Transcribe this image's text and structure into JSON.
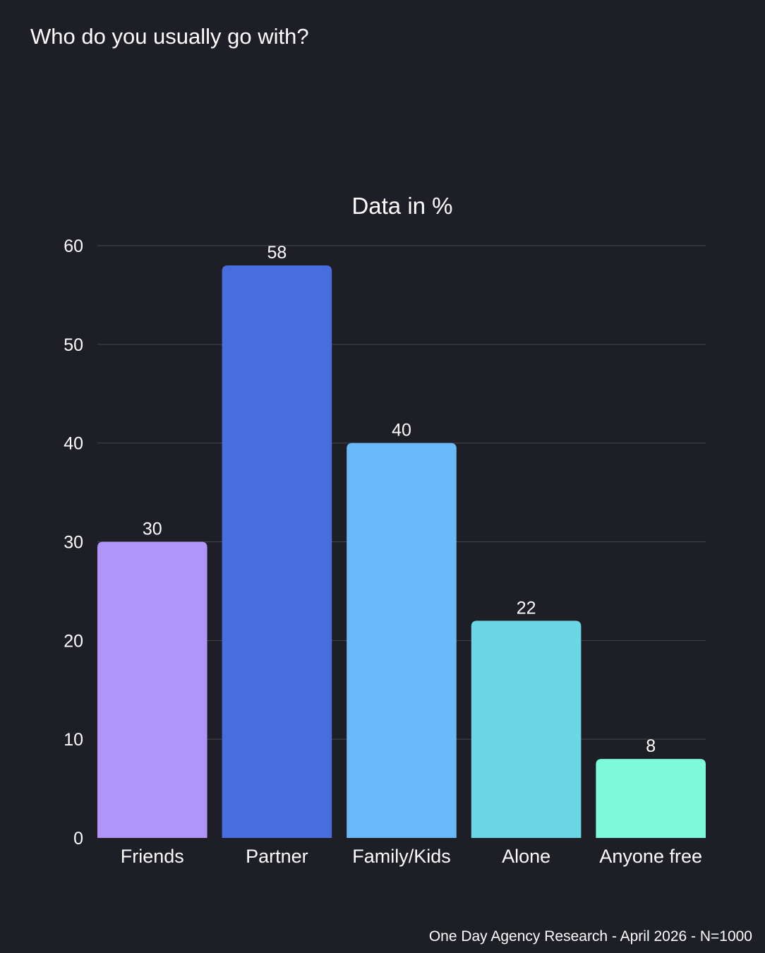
{
  "page": {
    "title": "Who do you usually go with?",
    "footer": "One Day Agency Research - April 2026 - N=1000"
  },
  "chart_data": {
    "type": "bar",
    "title": "Data in %",
    "xlabel": "",
    "ylabel": "",
    "categories": [
      "Friends",
      "Partner",
      "Family/Kids",
      "Alone",
      "Anyone free"
    ],
    "values": [
      30,
      58,
      40,
      22,
      8
    ],
    "data_labels": [
      "30",
      "58",
      "40",
      "22",
      "8"
    ],
    "colors": [
      "#b094f7",
      "#476ddf",
      "#6abaf9",
      "#6bd6e5",
      "#7efbdc"
    ],
    "ylim": [
      0,
      60
    ],
    "yticks": [
      0,
      10,
      20,
      30,
      40,
      50,
      60
    ],
    "ytick_labels": [
      "0",
      "10",
      "20",
      "30",
      "40",
      "50",
      "60"
    ],
    "grid": true,
    "legend": "none"
  }
}
